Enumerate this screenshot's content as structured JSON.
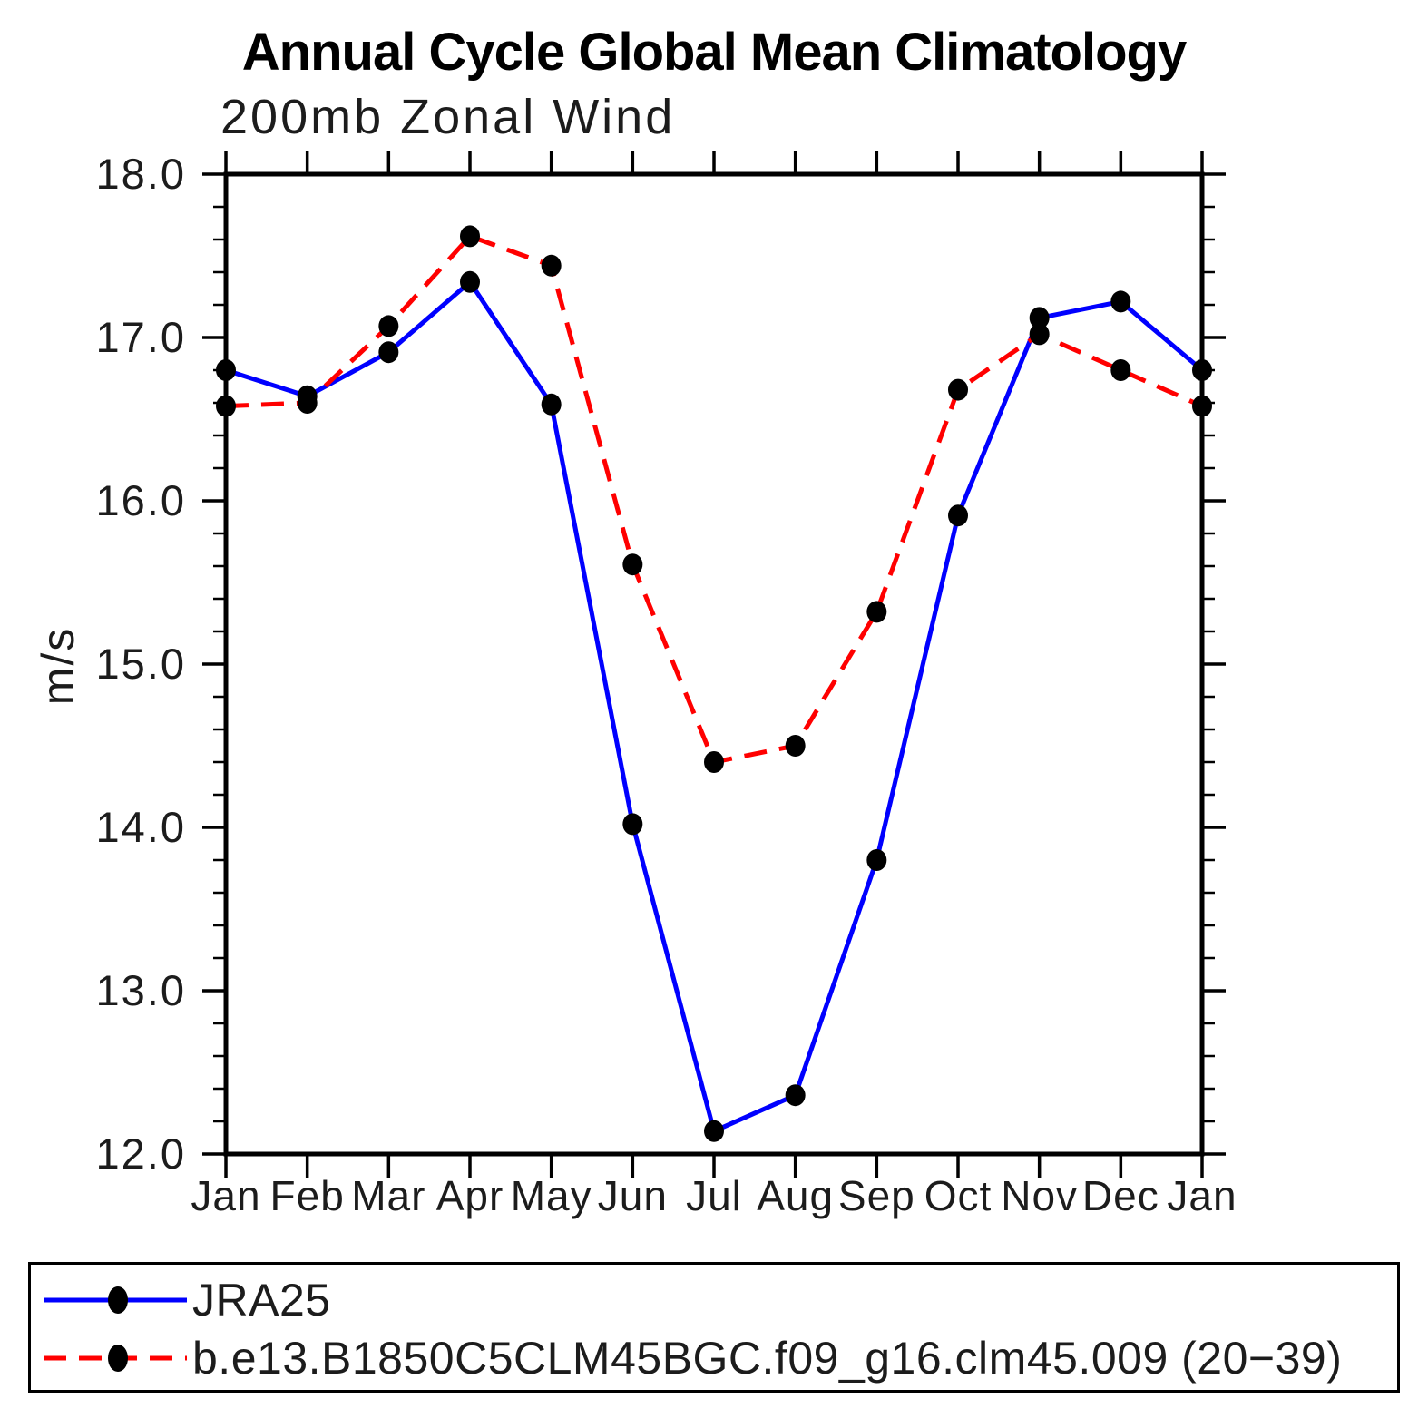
{
  "chart_data": {
    "type": "line",
    "title": "Annual Cycle Global Mean Climatology",
    "subtitle": "200mb Zonal Wind",
    "ylabel": "m/s",
    "categories": [
      "Jan",
      "Feb",
      "Mar",
      "Apr",
      "May",
      "Jun",
      "Jul",
      "Aug",
      "Sep",
      "Oct",
      "Nov",
      "Dec",
      "Jan"
    ],
    "ylim": [
      12.0,
      18.0
    ],
    "ytick_major": 1.0,
    "ytick_minor": 0.2,
    "ytick_labels": [
      "12.0",
      "13.0",
      "14.0",
      "15.0",
      "16.0",
      "17.0",
      "18.0"
    ],
    "grid": false,
    "legend_position": "bottom",
    "marker_color": "#000000",
    "frame_color": "#000000",
    "series": [
      {
        "name": "JRA25",
        "color": "#0000ff",
        "style": "solid",
        "values": [
          16.8,
          16.64,
          16.91,
          17.34,
          16.59,
          14.02,
          12.14,
          12.36,
          13.8,
          15.91,
          17.12,
          17.22,
          16.8
        ]
      },
      {
        "name": "b.e13.B1850C5CLM45BGC.f09_g16.clm45.009 (20−39)",
        "color": "#ff0000",
        "style": "dashed",
        "values": [
          16.58,
          16.6,
          17.07,
          17.62,
          17.44,
          15.61,
          14.4,
          14.5,
          15.32,
          16.68,
          17.02,
          16.8,
          16.58
        ]
      }
    ]
  }
}
